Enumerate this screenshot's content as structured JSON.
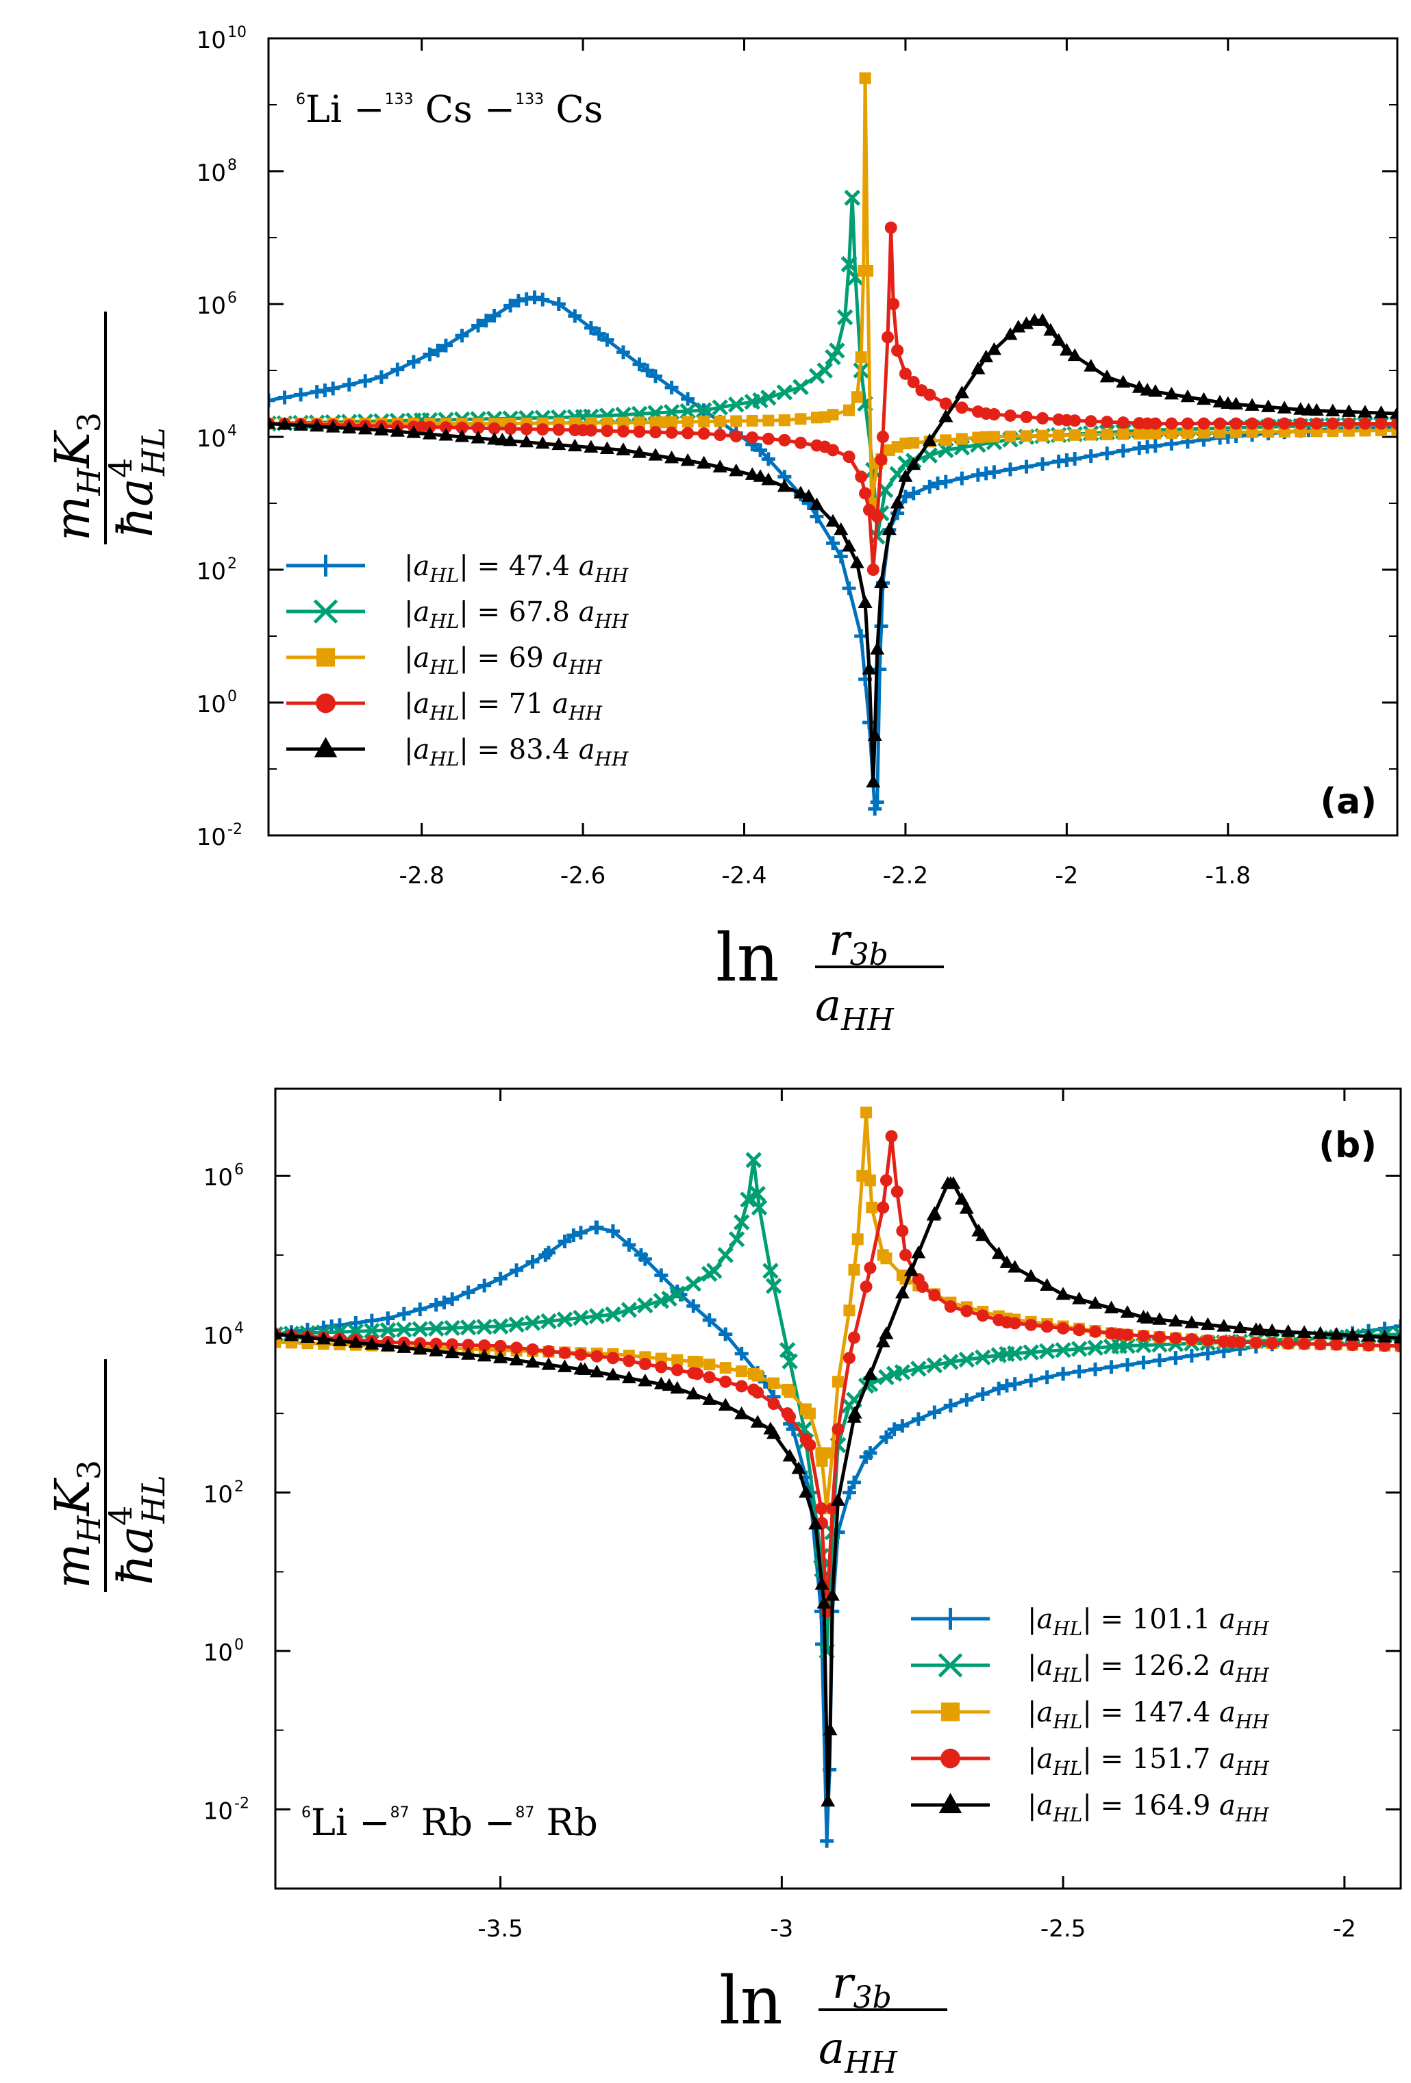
{
  "colors": {
    "blue": "#0072bd",
    "green": "#009e73",
    "orange": "#e69f00",
    "red": "#e32117",
    "black": "#000000"
  },
  "chart_data": [
    {
      "type": "line",
      "panel_label": "(a)",
      "system": {
        "h": "6",
        "h_el": "Li",
        "dash1": " −",
        "m1": "133",
        "m1_el": " Cs",
        "dash2": " −",
        "m2": "133",
        "m2_el": " Cs"
      },
      "xlabel": {
        "ln": "ln",
        "num": "r",
        "num_sub": "3b",
        "den": "a",
        "den_sub": "HH"
      },
      "ylabel": {
        "num_m": "m",
        "num_m_sub": "H",
        "num_K": "K",
        "num_K_sub": "3",
        "den_hbar": "ħ",
        "den_a": "a",
        "den_sup": "4",
        "den_sub": "HL"
      },
      "xlim": [
        -2.99,
        -1.59
      ],
      "ylim_log10": [
        -2,
        10
      ],
      "x_ticks": [
        -2.8,
        -2.6,
        -2.4,
        -2.2,
        -2,
        -1.8
      ],
      "x_tick_labels": [
        "-2.8",
        "-2.6",
        "-2.4",
        "-2.2",
        "-2",
        "-1.8"
      ],
      "y_ticks": [
        -2,
        0,
        2,
        4,
        6,
        8,
        10
      ],
      "y_tick_base": "10",
      "y_tick_exps": [
        "-2",
        "0",
        "2",
        "4",
        "6",
        "8",
        "10"
      ],
      "series": [
        {
          "name": "|a_HL| = 47.4 a_HH",
          "color_key": "blue",
          "marker": "plus",
          "legend": {
            "pipe1": "|",
            "a": "a",
            "sub": "HL",
            "pipe2": "|",
            "rest": " = 47.4 ",
            "a2": "a",
            "sub2": "HH"
          },
          "x": [
            -2.99,
            -2.92,
            -2.85,
            -2.78,
            -2.72,
            -2.68,
            -2.66,
            -2.63,
            -2.58,
            -2.52,
            -2.45,
            -2.38,
            -2.32,
            -2.28,
            -2.255,
            -2.245,
            -2.238,
            -2.235,
            -2.232,
            -2.228,
            -2.22,
            -2.2,
            -2.16,
            -2.1,
            -2.0,
            -1.9,
            -1.8,
            -1.7,
            -1.59
          ],
          "log10y": [
            4.55,
            4.7,
            4.9,
            5.3,
            5.75,
            6.05,
            6.1,
            6.0,
            5.55,
            5.0,
            4.4,
            3.8,
            3.0,
            2.2,
            1.0,
            -0.3,
            -1.6,
            -1.5,
            0.5,
            1.8,
            2.6,
            3.1,
            3.3,
            3.45,
            3.65,
            3.85,
            4.0,
            4.1,
            4.15
          ]
        },
        {
          "name": "|a_HL| = 67.8 a_HH",
          "color_key": "green",
          "marker": "cross",
          "legend": {
            "pipe1": "|",
            "a": "a",
            "sub": "HL",
            "pipe2": "|",
            "rest": " = 67.8 ",
            "a2": "a",
            "sub2": "HH"
          },
          "x": [
            -2.99,
            -2.8,
            -2.6,
            -2.45,
            -2.38,
            -2.33,
            -2.3,
            -2.285,
            -2.275,
            -2.27,
            -2.266,
            -2.262,
            -2.255,
            -2.24,
            -2.235,
            -2.225,
            -2.2,
            -2.15,
            -2.05,
            -1.9,
            -1.75,
            -1.59
          ],
          "log10y": [
            4.2,
            4.25,
            4.3,
            4.4,
            4.55,
            4.75,
            5.0,
            5.3,
            5.8,
            6.6,
            7.6,
            6.4,
            5.0,
            3.5,
            2.5,
            3.2,
            3.6,
            3.8,
            4.0,
            4.1,
            4.15,
            4.2
          ]
        },
        {
          "name": "|a_HL| = 69 a_HH",
          "color_key": "orange",
          "marker": "square",
          "legend": {
            "pipe1": "|",
            "a": "a",
            "sub": "HL",
            "pipe2": "|",
            "rest": " = 69 ",
            "a2": "a",
            "sub2": "HH"
          },
          "x": [
            -2.99,
            -2.7,
            -2.5,
            -2.35,
            -2.3,
            -2.27,
            -2.26,
            -2.255,
            -2.252,
            -2.25,
            -2.247,
            -2.242,
            -2.235,
            -2.22,
            -2.2,
            -2.1,
            -1.9,
            -1.59
          ],
          "log10y": [
            4.2,
            4.2,
            4.22,
            4.25,
            4.3,
            4.4,
            4.6,
            5.2,
            6.5,
            9.4,
            6.5,
            3.0,
            3.6,
            3.8,
            3.9,
            4.0,
            4.05,
            4.1
          ]
        },
        {
          "name": "|a_HL| = 71 a_HH",
          "color_key": "red",
          "marker": "circle",
          "legend": {
            "pipe1": "|",
            "a": "a",
            "sub": "HL",
            "pipe2": "|",
            "rest": " = 71 ",
            "a2": "a",
            "sub2": "HH"
          },
          "x": [
            -2.99,
            -2.8,
            -2.6,
            -2.45,
            -2.35,
            -2.3,
            -2.27,
            -2.255,
            -2.245,
            -2.24,
            -2.235,
            -2.228,
            -2.222,
            -2.218,
            -2.215,
            -2.21,
            -2.2,
            -2.18,
            -2.15,
            -2.1,
            -2.0,
            -1.9,
            -1.75,
            -1.59
          ],
          "log10y": [
            4.2,
            4.15,
            4.1,
            4.05,
            3.95,
            3.85,
            3.7,
            3.4,
            2.9,
            2.0,
            2.8,
            4.0,
            5.5,
            7.15,
            6.0,
            5.3,
            4.95,
            4.7,
            4.5,
            4.35,
            4.25,
            4.2,
            4.2,
            4.2
          ]
        },
        {
          "name": "|a_HL| = 83.4 a_HH",
          "color_key": "black",
          "marker": "triangle",
          "legend": {
            "pipe1": "|",
            "a": "a",
            "sub": "HL",
            "pipe2": "|",
            "rest": " = 83.4 ",
            "a2": "a",
            "sub2": "HH"
          },
          "x": [
            -2.99,
            -2.85,
            -2.7,
            -2.55,
            -2.45,
            -2.38,
            -2.32,
            -2.28,
            -2.26,
            -2.25,
            -2.245,
            -2.24,
            -2.238,
            -2.235,
            -2.23,
            -2.22,
            -2.2,
            -2.15,
            -2.1,
            -2.06,
            -2.04,
            -2.03,
            -2.02,
            -2.0,
            -1.95,
            -1.9,
            -1.8,
            -1.7,
            -1.59
          ],
          "log10y": [
            4.2,
            4.1,
            3.95,
            3.8,
            3.6,
            3.4,
            3.1,
            2.6,
            2.1,
            1.5,
            0.5,
            -1.2,
            -0.5,
            0.8,
            1.8,
            2.6,
            3.4,
            4.3,
            5.2,
            5.65,
            5.75,
            5.75,
            5.6,
            5.3,
            4.9,
            4.7,
            4.5,
            4.4,
            4.35
          ]
        }
      ]
    },
    {
      "type": "line",
      "panel_label": "(b)",
      "system": {
        "h": "6",
        "h_el": "Li",
        "dash1": " −",
        "m1": "87",
        "m1_el": " Rb",
        "dash2": " −",
        "m2": "87",
        "m2_el": " Rb"
      },
      "xlabel": {
        "ln": "ln",
        "num": "r",
        "num_sub": "3b",
        "den": "a",
        "den_sub": "HH"
      },
      "ylabel": {
        "num_m": "m",
        "num_m_sub": "H",
        "num_K": "K",
        "num_K_sub": "3",
        "den_hbar": "ħ",
        "den_a": "a",
        "den_sup": "4",
        "den_sub": "HL"
      },
      "xlim": [
        -3.9,
        -1.9
      ],
      "ylim_log10": [
        -3,
        7.1
      ],
      "x_ticks": [
        -3.5,
        -3,
        -2.5,
        -2
      ],
      "x_tick_labels": [
        "-3.5",
        "-3",
        "-2.5",
        "-2"
      ],
      "y_ticks": [
        -2,
        0,
        2,
        4,
        6
      ],
      "y_tick_base": "10",
      "y_tick_exps": [
        "-2",
        "0",
        "2",
        "4",
        "6"
      ],
      "series": [
        {
          "name": "|a_HL| = 101.1 a_HH",
          "color_key": "blue",
          "marker": "plus",
          "legend": {
            "pipe1": "|",
            "a": "a",
            "sub": "HL",
            "pipe2": "|",
            "rest": " = 101.1 ",
            "a2": "a",
            "sub2": "HH"
          },
          "x": [
            -3.9,
            -3.8,
            -3.7,
            -3.6,
            -3.5,
            -3.42,
            -3.37,
            -3.33,
            -3.3,
            -3.25,
            -3.18,
            -3.1,
            -3.03,
            -2.98,
            -2.95,
            -2.93,
            -2.92,
            -2.915,
            -2.91,
            -2.9,
            -2.88,
            -2.85,
            -2.8,
            -2.7,
            -2.6,
            -2.5,
            -2.3,
            -2.1,
            -1.9
          ],
          "log10y": [
            4.0,
            4.1,
            4.2,
            4.4,
            4.7,
            5.0,
            5.25,
            5.35,
            5.3,
            5.0,
            4.5,
            4.0,
            3.4,
            2.8,
            2.0,
            0.5,
            -2.4,
            -1.5,
            0.5,
            1.5,
            2.0,
            2.45,
            2.8,
            3.1,
            3.35,
            3.5,
            3.7,
            3.9,
            4.1
          ]
        },
        {
          "name": "|a_HL| = 126.2 a_HH",
          "color_key": "green",
          "marker": "cross",
          "legend": {
            "pipe1": "|",
            "a": "a",
            "sub": "HL",
            "pipe2": "|",
            "rest": " = 126.2 ",
            "a2": "a",
            "sub2": "HH"
          },
          "x": [
            -3.9,
            -3.7,
            -3.5,
            -3.3,
            -3.2,
            -3.12,
            -3.08,
            -3.06,
            -3.05,
            -3.04,
            -3.02,
            -2.99,
            -2.96,
            -2.93,
            -2.92,
            -2.91,
            -2.9,
            -2.88,
            -2.85,
            -2.8,
            -2.7,
            -2.6,
            -2.4,
            -2.2,
            -1.9
          ],
          "log10y": [
            4.0,
            4.05,
            4.1,
            4.25,
            4.45,
            4.8,
            5.2,
            5.7,
            6.2,
            5.6,
            4.8,
            3.8,
            2.8,
            1.2,
            0.0,
            1.5,
            2.6,
            3.1,
            3.35,
            3.5,
            3.65,
            3.75,
            3.85,
            3.9,
            4.0
          ]
        },
        {
          "name": "|a_HL| = 147.4 a_HH",
          "color_key": "orange",
          "marker": "square",
          "legend": {
            "pipe1": "|",
            "a": "a",
            "sub": "HL",
            "pipe2": "|",
            "rest": " = 147.4 ",
            "a2": "a",
            "sub2": "HH"
          },
          "x": [
            -3.9,
            -3.7,
            -3.5,
            -3.3,
            -3.15,
            -3.05,
            -2.99,
            -2.95,
            -2.93,
            -2.92,
            -2.91,
            -2.9,
            -2.88,
            -2.865,
            -2.857,
            -2.85,
            -2.84,
            -2.82,
            -2.78,
            -2.7,
            -2.6,
            -2.4,
            -2.2,
            -1.9
          ],
          "log10y": [
            3.9,
            3.85,
            3.8,
            3.75,
            3.65,
            3.5,
            3.3,
            3.0,
            2.5,
            1.8,
            2.5,
            3.4,
            4.3,
            5.2,
            6.0,
            6.8,
            5.6,
            5.0,
            4.7,
            4.4,
            4.2,
            4.0,
            3.9,
            3.85
          ]
        },
        {
          "name": "|a_HL| = 151.7 a_HH",
          "color_key": "red",
          "marker": "circle",
          "legend": {
            "pipe1": "|",
            "a": "a",
            "sub": "HL",
            "pipe2": "|",
            "rest": " = 151.7 ",
            "a2": "a",
            "sub2": "HH"
          },
          "x": [
            -3.9,
            -3.7,
            -3.5,
            -3.3,
            -3.15,
            -3.05,
            -2.99,
            -2.95,
            -2.93,
            -2.92,
            -2.91,
            -2.9,
            -2.88,
            -2.85,
            -2.82,
            -2.805,
            -2.795,
            -2.78,
            -2.75,
            -2.7,
            -2.6,
            -2.4,
            -2.2,
            -1.9
          ],
          "log10y": [
            4.0,
            3.9,
            3.85,
            3.7,
            3.5,
            3.3,
            3.0,
            2.6,
            1.8,
            0.5,
            1.8,
            2.8,
            3.7,
            4.6,
            5.6,
            6.5,
            5.8,
            5.0,
            4.6,
            4.35,
            4.15,
            4.0,
            3.9,
            3.85
          ]
        },
        {
          "name": "|a_HL| = 164.9 a_HH",
          "color_key": "black",
          "marker": "triangle",
          "legend": {
            "pipe1": "|",
            "a": "a",
            "sub": "HL",
            "pipe2": "|",
            "rest": " = 164.9 ",
            "a2": "a",
            "sub2": "HH"
          },
          "x": [
            -3.9,
            -3.7,
            -3.5,
            -3.35,
            -3.2,
            -3.1,
            -3.02,
            -2.97,
            -2.94,
            -2.925,
            -2.918,
            -2.914,
            -2.91,
            -2.9,
            -2.87,
            -2.82,
            -2.77,
            -2.73,
            -2.705,
            -2.695,
            -2.68,
            -2.65,
            -2.6,
            -2.5,
            -2.35,
            -2.15,
            -1.9
          ],
          "log10y": [
            4.0,
            3.85,
            3.7,
            3.55,
            3.35,
            3.1,
            2.8,
            2.3,
            1.6,
            0.6,
            -1.9,
            -1.0,
            0.7,
            1.9,
            3.0,
            3.9,
            4.8,
            5.5,
            5.9,
            5.9,
            5.7,
            5.3,
            4.9,
            4.5,
            4.2,
            4.05,
            3.95
          ]
        }
      ]
    }
  ]
}
